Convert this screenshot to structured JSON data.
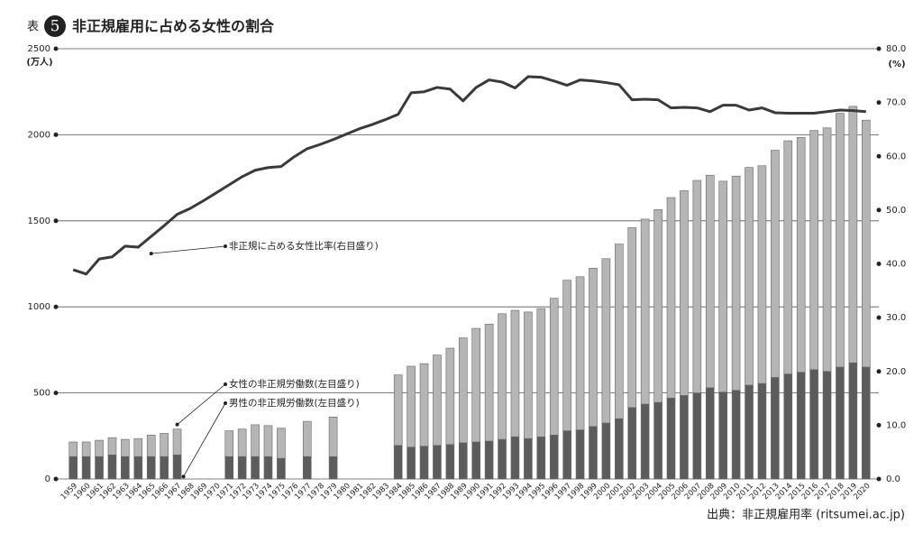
{
  "chart_data": {
    "type": "bar-line",
    "title_label": "表",
    "title_number": "5",
    "title": "非正規雇用に占める女性の割合",
    "y_unit": "(万人)",
    "y2_unit": "(%)",
    "source": "出典：非正規雇用率 (ritsumei.ac.jp)",
    "categories": [
      "1959",
      "1960",
      "1961",
      "1962",
      "1963",
      "1964",
      "1965",
      "1966",
      "1967",
      "1968",
      "1969",
      "1970",
      "1971",
      "1972",
      "1973",
      "1974",
      "1975",
      "1976",
      "1977",
      "1978",
      "1979",
      "1980",
      "1981",
      "1982",
      "1983",
      "1984",
      "1985",
      "1986",
      "1987",
      "1988",
      "1989",
      "1990",
      "1991",
      "1992",
      "1993",
      "1994",
      "1995",
      "1996",
      "1997",
      "1998",
      "1999",
      "2000",
      "2001",
      "2002",
      "2003",
      "2004",
      "2005",
      "2006",
      "2007",
      "2008",
      "2009",
      "2010",
      "2011",
      "2012",
      "2013",
      "2014",
      "2015",
      "2016",
      "2017",
      "2018",
      "2019",
      "2020"
    ],
    "series": [
      {
        "name": "男性の非正規労働数(左目盛り)",
        "color": "#5c5c5c",
        "type": "bar",
        "values": [
          130,
          130,
          130,
          140,
          130,
          130,
          130,
          130,
          140,
          null,
          null,
          null,
          130,
          130,
          130,
          130,
          120,
          null,
          130,
          null,
          130,
          null,
          null,
          null,
          null,
          195,
          185,
          190,
          195,
          200,
          210,
          215,
          220,
          230,
          245,
          235,
          245,
          255,
          280,
          285,
          305,
          325,
          350,
          415,
          435,
          445,
          470,
          485,
          500,
          530,
          505,
          515,
          545,
          555,
          590,
          610,
          620,
          635,
          625,
          650,
          675,
          650
        ]
      },
      {
        "name": "女性の非正規労働数(左目盛り)",
        "color": "#b5b5b5",
        "type": "bar",
        "values": [
          85,
          85,
          95,
          100,
          100,
          105,
          125,
          135,
          150,
          null,
          null,
          null,
          150,
          160,
          185,
          180,
          175,
          null,
          205,
          null,
          230,
          null,
          null,
          null,
          null,
          410,
          470,
          480,
          525,
          560,
          610,
          660,
          680,
          730,
          735,
          735,
          745,
          795,
          875,
          890,
          920,
          955,
          1015,
          1045,
          1075,
          1120,
          1165,
          1190,
          1235,
          1235,
          1225,
          1245,
          1265,
          1265,
          1320,
          1355,
          1365,
          1390,
          1415,
          1475,
          1490,
          1435
        ]
      },
      {
        "name": "非正規に占める女性比率(右目盛り)",
        "color": "#3a3a3a",
        "type": "line",
        "axis": "y2",
        "values": [
          38.9,
          38.1,
          40.9,
          41.3,
          43.3,
          43.1,
          45.1,
          47.1,
          49.2,
          50.3,
          51.7,
          53.2,
          54.7,
          56.2,
          57.4,
          57.9,
          58.1,
          59.9,
          61.4,
          62.2,
          63.1,
          64.1,
          65.1,
          65.9,
          66.8,
          67.8,
          71.8,
          72.0,
          72.8,
          72.5,
          70.3,
          72.8,
          74.2,
          73.8,
          72.7,
          74.8,
          74.7,
          74.0,
          73.2,
          74.2,
          74.0,
          73.7,
          73.3,
          70.5,
          70.6,
          70.5,
          69.0,
          69.1,
          69.0,
          68.3,
          69.5,
          69.5,
          68.6,
          69.0,
          68.1,
          68.0,
          68.0,
          68.0,
          68.3,
          68.6,
          68.5,
          68.3
        ]
      }
    ],
    "ylim": [
      0,
      2500
    ],
    "yticks": [
      0,
      500,
      1000,
      1500,
      2000,
      2500
    ],
    "y2lim": [
      0,
      80
    ],
    "y2ticks": [
      {
        "value": 0,
        "label": "0.0"
      },
      {
        "value": 10,
        "label": "10.0"
      },
      {
        "value": 20,
        "label": "20.0"
      },
      {
        "value": 30,
        "label": "30.0"
      },
      {
        "value": 40,
        "label": "40.0"
      },
      {
        "value": 50,
        "label": "50.0"
      },
      {
        "value": 60,
        "label": "60.0"
      },
      {
        "value": 70,
        "label": "70.0"
      },
      {
        "value": 80,
        "label": "80.0"
      }
    ],
    "grid": true
  }
}
